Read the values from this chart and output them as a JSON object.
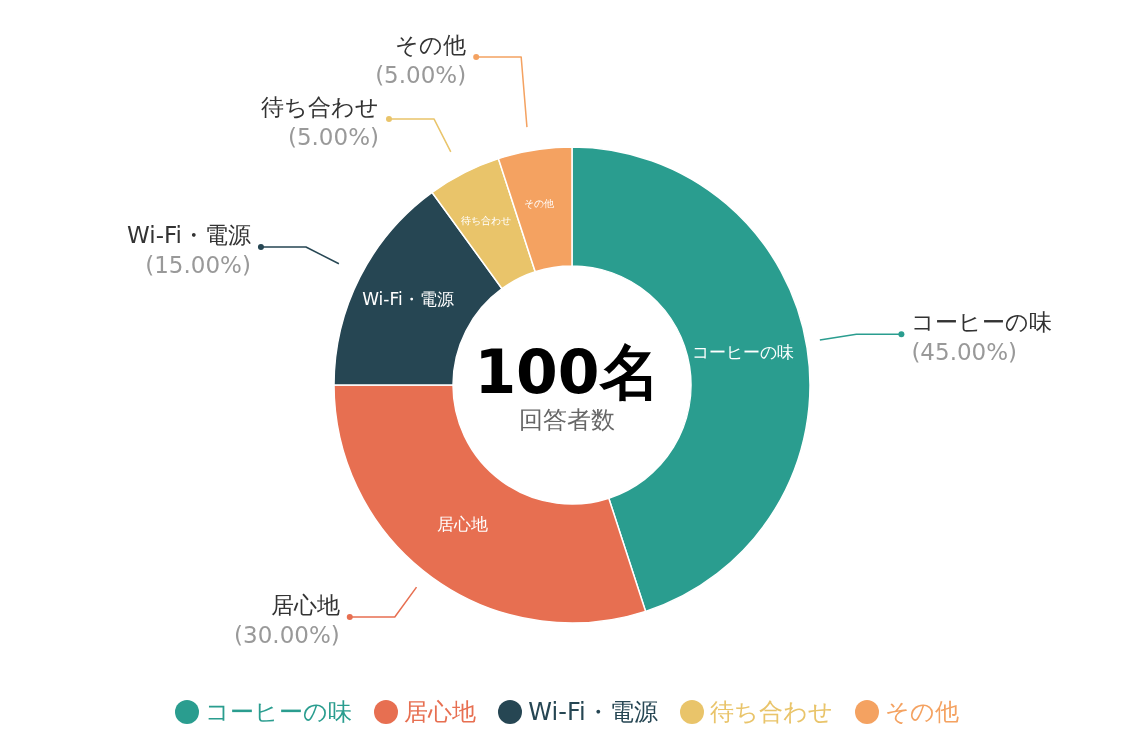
{
  "chart_data": {
    "type": "donut",
    "categories": [
      "コーヒーの味",
      "居心地",
      "Wi-Fi・電源",
      "待ち合わせ",
      "その他"
    ],
    "values": [
      45,
      30,
      15,
      5,
      5
    ],
    "colors": [
      "#2a9d8f",
      "#e76f51",
      "#264653",
      "#e9c46a",
      "#f4a261"
    ],
    "value_labels": [
      "(45.00%)",
      "(30.00%)",
      "(15.00%)",
      "(5.00%)",
      "(5.00%)"
    ],
    "annotations": [
      "100名",
      "回答者数"
    ],
    "legend": "bottom"
  }
}
